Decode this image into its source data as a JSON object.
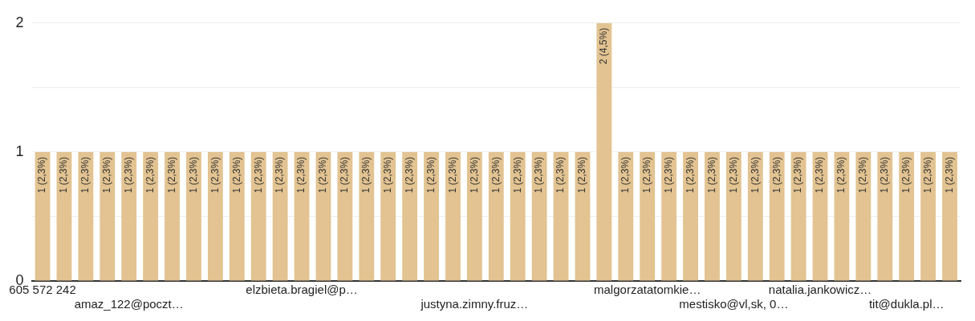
{
  "chart_data": {
    "type": "bar",
    "categories": [
      "605 572 242",
      null,
      null,
      null,
      "amaz_122@poczt…",
      null,
      null,
      null,
      null,
      null,
      null,
      null,
      "elzbieta.bragiel@p…",
      null,
      null,
      null,
      null,
      null,
      null,
      null,
      "justyna.zimny.fruz…",
      null,
      null,
      null,
      null,
      null,
      null,
      null,
      "malgorzatatomkie…",
      null,
      null,
      null,
      "mestisko@vl,sk, 0…",
      null,
      null,
      null,
      "natalia.jankowicz…",
      null,
      null,
      null,
      "tit@dukla.pl…",
      null,
      null
    ],
    "values": [
      1,
      1,
      1,
      1,
      1,
      1,
      1,
      1,
      1,
      1,
      1,
      1,
      1,
      1,
      1,
      1,
      1,
      1,
      1,
      1,
      1,
      1,
      1,
      1,
      1,
      1,
      2,
      1,
      1,
      1,
      1,
      1,
      1,
      1,
      1,
      1,
      1,
      1,
      1,
      1,
      1,
      1,
      1
    ],
    "value_labels": [
      "1 (2,3%)",
      "1 (2,3%)",
      "1 (2,3%)",
      "1 (2,3%)",
      "1 (2,3%)",
      "1 (2,3%)",
      "1 (2,3%)",
      "1 (2,3%)",
      "1 (2,3%)",
      "1 (2,3%)",
      "1 (2,3%)",
      "1 (2,3%)",
      "1 (2,3%)",
      "1 (2,3%)",
      "1 (2,3%)",
      "1 (2,3%)",
      "1 (2,3%)",
      "1 (2,3%)",
      "1 (2,3%)",
      "1 (2,3%)",
      "1 (2,3%)",
      "1 (2,3%)",
      "1 (2,3%)",
      "1 (2,3%)",
      "1 (2,3%)",
      "1 (2,3%)",
      "2 (4,5%)",
      "1 (2,3%)",
      "1 (2,3%)",
      "1 (2,3%)",
      "1 (2,3%)",
      "1 (2,3%)",
      "1 (2,3%)",
      "1 (2,3%)",
      "1 (2,3%)",
      "1 (2,3%)",
      "1 (2,3%)",
      "1 (2,3%)",
      "1 (2,3%)",
      "1 (2,3%)",
      "1 (2,3%)",
      "1 (2,3%)",
      "1 (2,3%)"
    ],
    "color": "#e2c391",
    "ylim": [
      0,
      2
    ],
    "yticks": [
      0,
      {
        "value": 0.5,
        "label": null
      },
      1,
      {
        "value": 1.5,
        "label": null
      },
      2
    ],
    "grid": "y"
  }
}
